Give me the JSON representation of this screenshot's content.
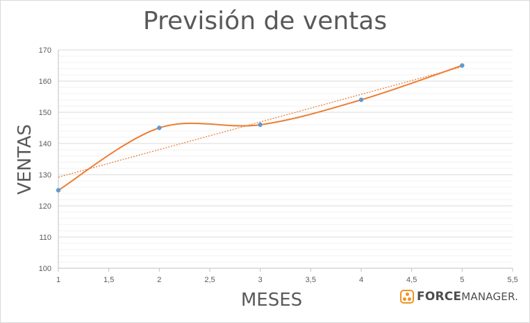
{
  "chart_data": {
    "type": "line",
    "title": "Previsión de ventas",
    "xlabel": "MESES",
    "ylabel": "VENTAS",
    "xlim": [
      1,
      5.5
    ],
    "ylim": [
      100,
      170
    ],
    "x_ticks": [
      "1",
      "1,5",
      "2",
      "2,5",
      "3",
      "3,5",
      "4",
      "4,5",
      "5",
      "5,5"
    ],
    "y_ticks": [
      "100",
      "110",
      "120",
      "130",
      "140",
      "150",
      "160",
      "170"
    ],
    "series": [
      {
        "x": [
          1,
          2,
          3,
          4,
          5
        ],
        "values": [
          125,
          145,
          146,
          154,
          165
        ],
        "smooth": true,
        "line_color": "#ed7d31",
        "marker_color": "#5b9bd5"
      }
    ],
    "trendline": {
      "type": "linear",
      "style": "dotted",
      "color": "#ed7d31",
      "x": [
        1,
        5
      ],
      "values": [
        129.2,
        164.6
      ]
    },
    "grid": {
      "major": true,
      "minor": true
    }
  },
  "logo": {
    "part1": "FORCE",
    "part2": "MANAGER",
    "mark": "."
  },
  "colors": {
    "logo_orange": "#f29221"
  }
}
